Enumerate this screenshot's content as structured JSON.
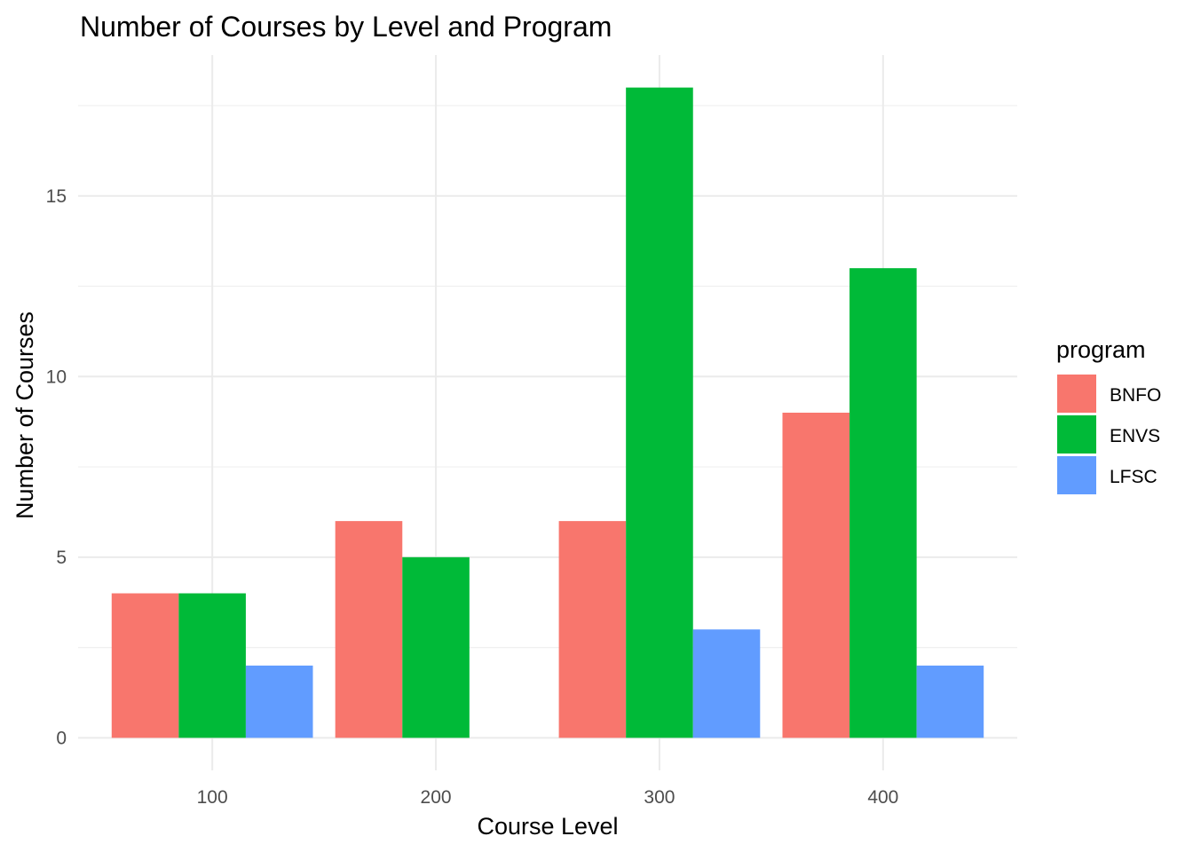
{
  "chart_data": {
    "type": "bar",
    "title": "Number of Courses by Level and Program",
    "xlabel": "Course Level",
    "ylabel": "Number of Courses",
    "categories": [
      "100",
      "200",
      "300",
      "400"
    ],
    "series": [
      {
        "name": "BNFO",
        "color": "#F8766D",
        "values": [
          4,
          6,
          6,
          9
        ]
      },
      {
        "name": "ENVS",
        "color": "#00BA38",
        "values": [
          4,
          5,
          18,
          13
        ]
      },
      {
        "name": "LFSC",
        "color": "#619CFF",
        "values": [
          2,
          0,
          3,
          2
        ]
      }
    ],
    "yticks": [
      0,
      5,
      10,
      15
    ],
    "ylim": [
      -0.9,
      18.9
    ],
    "grid": true,
    "legend": {
      "title": "program",
      "position": "right"
    }
  }
}
